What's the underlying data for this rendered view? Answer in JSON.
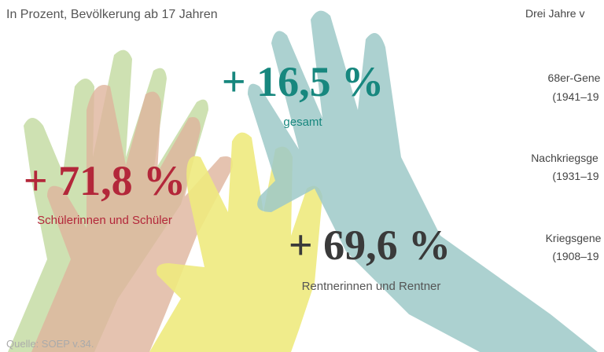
{
  "subtitle": "In Prozent, Bevölkerung ab 17 Jahren",
  "highlights": [
    {
      "value": "+ 16,5 %",
      "label": "gesamt"
    },
    {
      "value": "+ 71,8 %",
      "label": "Schülerinnen und Schüler"
    },
    {
      "value": "+ 69,6 %",
      "label": "Rentnerinnen und Rentner"
    }
  ],
  "source": "Quelle: SOEP v.34.",
  "side_panel": {
    "title": "Drei Jahre v",
    "groups": [
      {
        "name": "68er-Gene",
        "years": "(1941–19"
      },
      {
        "name": "Nachkriegsge",
        "years": "(1931–19"
      },
      {
        "name": "Kriegsgene",
        "years": "(1908–19"
      }
    ]
  }
}
